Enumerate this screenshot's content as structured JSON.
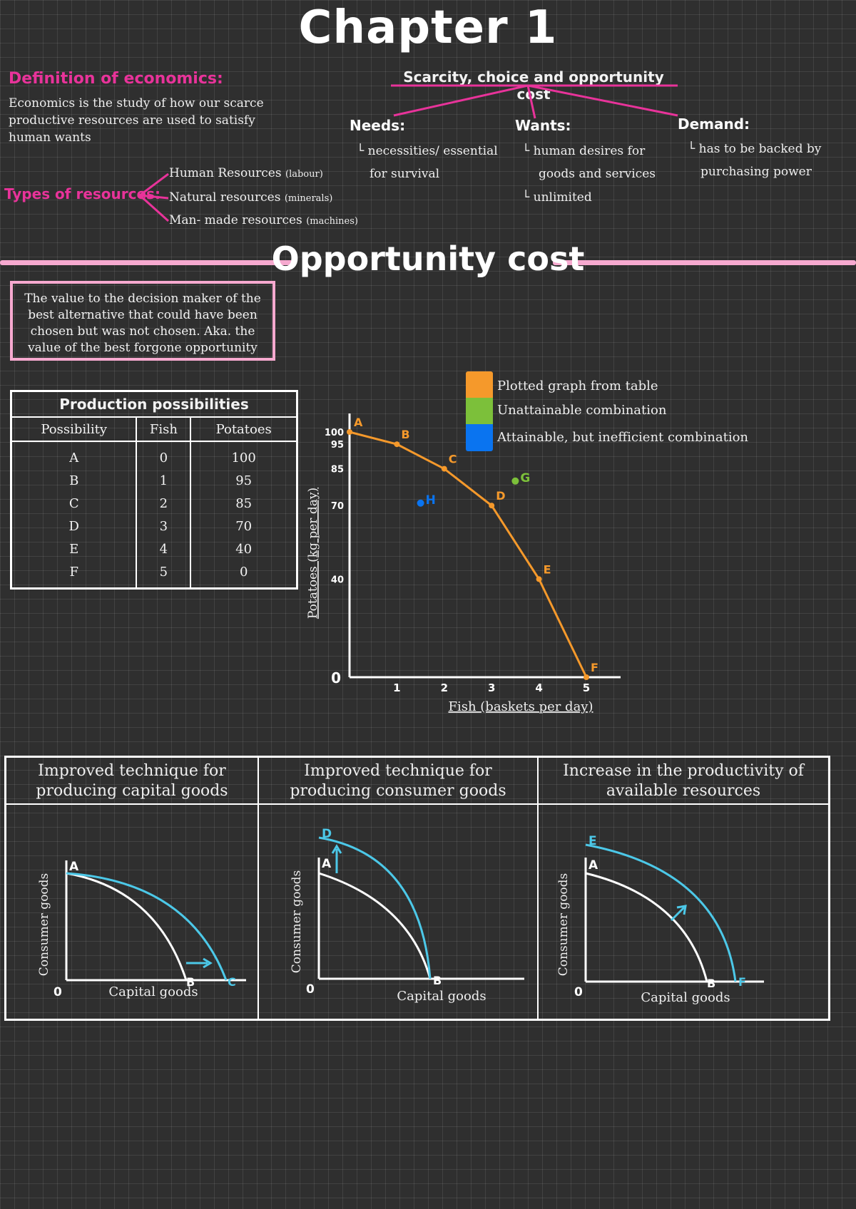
{
  "title": "Chapter 1",
  "definition": {
    "heading": "Definition of economics:",
    "text": "Economics is the study of how our scarce productive resources are used to satisfy human wants"
  },
  "resources": {
    "heading": "Types of resources:",
    "items": [
      "Human Resources",
      "Natural resources",
      "Man- made resources"
    ],
    "notes": [
      "(labour)",
      "(minerals)",
      "(machines)"
    ]
  },
  "scarcity": {
    "heading": "Scarcity, choice and opportunity cost",
    "needs": {
      "label": "Needs:",
      "lines": [
        "└ necessities/ essential",
        "for survival"
      ]
    },
    "wants": {
      "label": "Wants:",
      "lines": [
        "└ human desires for",
        "goods and services",
        "└ unlimited"
      ]
    },
    "demand": {
      "label": "Demand:",
      "lines": [
        "└ has to be backed by",
        "purchasing power"
      ]
    }
  },
  "opportunity": {
    "heading": "Opportunity cost",
    "definition": "The value to the decision maker of the best alternative that could have been chosen but was not chosen. Aka. the value of the best forgone opportunity"
  },
  "table": {
    "caption": "Production possibilities",
    "headers": [
      "Possibility",
      "Fish",
      "Potatoes"
    ],
    "rows": [
      [
        "A",
        "0",
        "100"
      ],
      [
        "B",
        "1",
        "95"
      ],
      [
        "C",
        "2",
        "85"
      ],
      [
        "D",
        "3",
        "70"
      ],
      [
        "E",
        "4",
        "40"
      ],
      [
        "F",
        "5",
        "0"
      ]
    ]
  },
  "legend": [
    {
      "label": "Plotted graph from table",
      "color": "#f5992b"
    },
    {
      "label": "Unattainable combination",
      "color": "#7cc03a"
    },
    {
      "label": "Attainable, but inefficient combination",
      "color": "#0a74f0"
    }
  ],
  "chart_data": [
    {
      "type": "line",
      "xlabel": "Fish (baskets per day)",
      "ylabel": "Potatoes (kg per day)",
      "x_ticks": [
        "1",
        "2",
        "3",
        "4",
        "5"
      ],
      "y_ticks": [
        "100",
        "95",
        "85",
        "70",
        "40"
      ],
      "origin_label": "0",
      "xlim": [
        0,
        5.5
      ],
      "ylim": [
        0,
        105
      ],
      "series": [
        {
          "name": "Plotted graph from table",
          "color": "#f5992b",
          "points": [
            {
              "label": "A",
              "x": 0,
              "y": 100
            },
            {
              "label": "B",
              "x": 1,
              "y": 95
            },
            {
              "label": "C",
              "x": 2,
              "y": 85
            },
            {
              "label": "D",
              "x": 3,
              "y": 70
            },
            {
              "label": "E",
              "x": 4,
              "y": 40
            },
            {
              "label": "F",
              "x": 5,
              "y": 0
            }
          ]
        }
      ],
      "extra_points": [
        {
          "label": "G",
          "x": 3.5,
          "y": 80,
          "color": "#7cc03a"
        },
        {
          "label": "H",
          "x": 1.5,
          "y": 71,
          "color": "#0a74f0"
        }
      ]
    }
  ],
  "panels": [
    {
      "title": [
        "Improved technique for",
        "producing capital goods"
      ],
      "ylabel": "Consumer goods",
      "xlabel": "Capital goods",
      "origin": "0",
      "labels": [
        "A",
        "B",
        "C"
      ]
    },
    {
      "title": [
        "Improved technique for",
        "producing consumer goods"
      ],
      "ylabel": "Consumer goods",
      "xlabel": "Capital goods",
      "origin": "0",
      "labels": [
        "A",
        "D",
        "B"
      ]
    },
    {
      "title": [
        "Increase in the productivity of",
        "available resources"
      ],
      "ylabel": "Consumer goods",
      "xlabel": "Capital goods",
      "origin": "0",
      "labels": [
        "A",
        "E",
        "B",
        "F"
      ]
    }
  ],
  "colors": {
    "pink": "#e8339a",
    "light_pink": "#f6a9cf",
    "orange": "#f5992b",
    "cyan": "#4cc8e8"
  }
}
